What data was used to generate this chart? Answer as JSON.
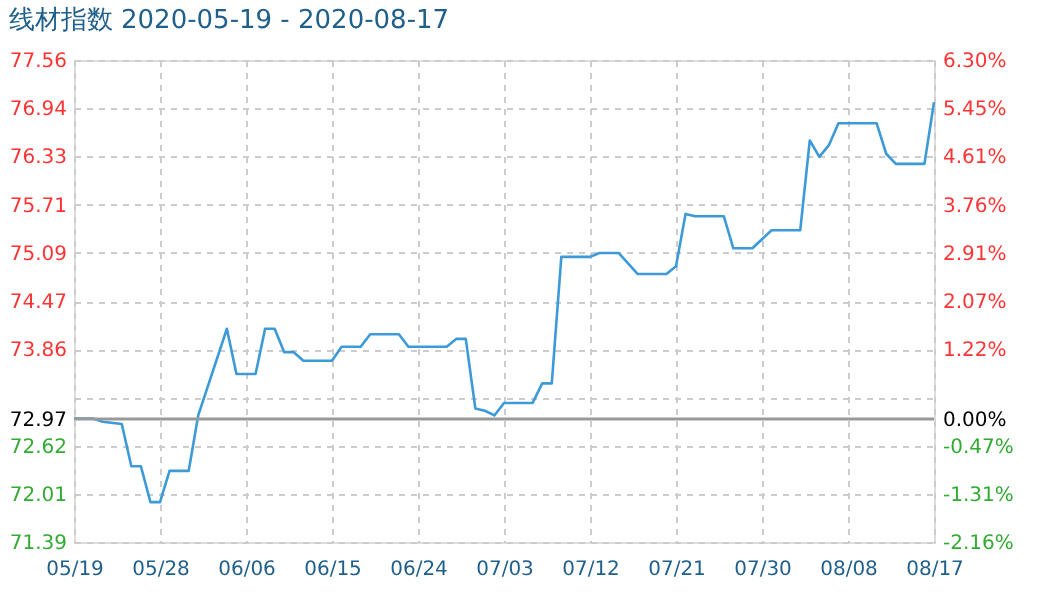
{
  "chart_data": {
    "type": "line",
    "title": "线材指数 2020-05-19 - 2020-08-17",
    "x": [
      "2020-05-19",
      "2020-05-21",
      "2020-05-22",
      "2020-05-24",
      "2020-05-25",
      "2020-05-26",
      "2020-05-27",
      "2020-05-28",
      "2020-05-29",
      "2020-05-31",
      "2020-06-01",
      "2020-06-04",
      "2020-06-05",
      "2020-06-07",
      "2020-06-08",
      "2020-06-09",
      "2020-06-10",
      "2020-06-11",
      "2020-06-12",
      "2020-06-15",
      "2020-06-16",
      "2020-06-18",
      "2020-06-19",
      "2020-06-22",
      "2020-06-23",
      "2020-06-27",
      "2020-06-28",
      "2020-06-29",
      "2020-06-30",
      "2020-07-01",
      "2020-07-02",
      "2020-07-03",
      "2020-07-06",
      "2020-07-07",
      "2020-07-08",
      "2020-07-09",
      "2020-07-12",
      "2020-07-13",
      "2020-07-15",
      "2020-07-17",
      "2020-07-20",
      "2020-07-21",
      "2020-07-22",
      "2020-07-23",
      "2020-07-26",
      "2020-07-27",
      "2020-07-29",
      "2020-07-31",
      "2020-08-03",
      "2020-08-04",
      "2020-08-05",
      "2020-08-06",
      "2020-08-07",
      "2020-08-11",
      "2020-08-12",
      "2020-08-13",
      "2020-08-16",
      "2020-08-17"
    ],
    "series": [
      {
        "color": "#3c9ad8",
        "values": [
          72.97,
          72.97,
          72.93,
          72.9,
          72.36,
          72.36,
          71.9,
          71.9,
          72.3,
          72.3,
          73.01,
          74.12,
          73.54,
          73.54,
          74.12,
          74.12,
          73.82,
          73.82,
          73.71,
          73.71,
          73.89,
          73.89,
          74.05,
          74.05,
          73.89,
          73.89,
          73.99,
          73.99,
          73.1,
          73.07,
          73.01,
          73.17,
          73.17,
          73.42,
          73.42,
          75.04,
          75.04,
          75.09,
          75.09,
          74.82,
          74.82,
          74.92,
          75.59,
          75.56,
          75.56,
          75.15,
          75.15,
          75.38,
          75.38,
          76.53,
          76.32,
          76.47,
          76.75,
          76.75,
          76.36,
          76.23,
          76.23,
          77.02
        ]
      }
    ],
    "xlim": [
      "2020-05-19",
      "2020-08-17"
    ],
    "xticks": [
      {
        "value": "2020-05-19",
        "label": "05/19"
      },
      {
        "value": "2020-05-28",
        "label": "05/28"
      },
      {
        "value": "2020-06-06",
        "label": "06/06"
      },
      {
        "value": "2020-06-15",
        "label": "06/15"
      },
      {
        "value": "2020-06-24",
        "label": "06/24"
      },
      {
        "value": "2020-07-03",
        "label": "07/03"
      },
      {
        "value": "2020-07-12",
        "label": "07/12"
      },
      {
        "value": "2020-07-21",
        "label": "07/21"
      },
      {
        "value": "2020-07-30",
        "label": "07/30"
      },
      {
        "value": "2020-08-08",
        "label": "08/08"
      },
      {
        "value": "2020-08-17",
        "label": "08/17"
      }
    ],
    "ylim": [
      71.39,
      77.56
    ],
    "yticks": [
      77.56,
      76.94,
      76.33,
      75.71,
      75.09,
      74.47,
      73.86,
      {
        "value": 73.24,
        "label": null
      },
      72.97,
      72.62,
      72.01,
      71.39
    ],
    "y2lim": [
      -2.16,
      6.3
    ],
    "y2ticks": [
      {
        "value": 6.3,
        "label": "6.30%"
      },
      {
        "value": 5.45,
        "label": "5.45%"
      },
      {
        "value": 4.61,
        "label": "4.61%"
      },
      {
        "value": 3.76,
        "label": "3.76%"
      },
      {
        "value": 2.91,
        "label": "2.91%"
      },
      {
        "value": 2.07,
        "label": "2.07%"
      },
      {
        "value": 1.22,
        "label": "1.22%"
      },
      {
        "value": 0,
        "label": "0.00%"
      },
      {
        "value": -0.47,
        "label": "-0.47%"
      },
      {
        "value": -1.31,
        "label": "-1.31%"
      },
      {
        "value": -2.16,
        "label": "-2.16%"
      }
    ],
    "ref_lines": [
      {
        "axis": "y2",
        "value": 0,
        "color": "#999999"
      }
    ],
    "grid": true
  }
}
